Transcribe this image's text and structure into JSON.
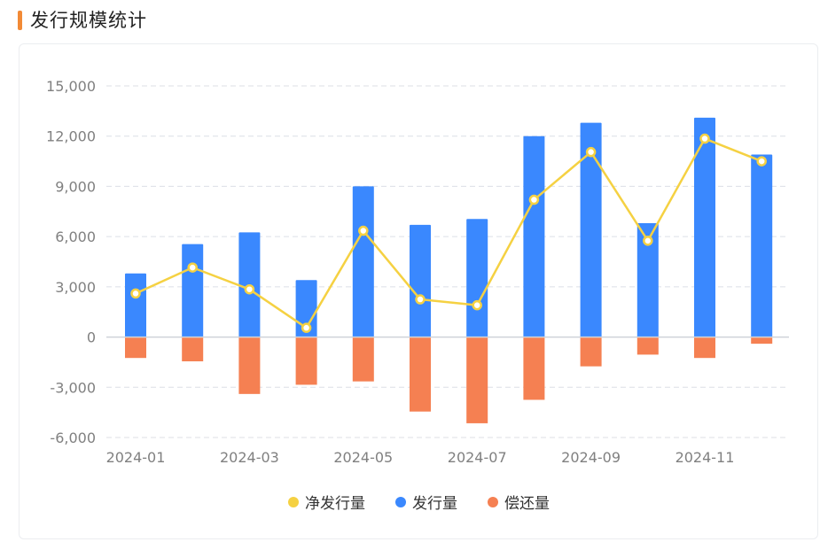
{
  "header": {
    "title": "发行规模统计"
  },
  "colors": {
    "accent": "#f28a36",
    "issuance": "#3a88fe",
    "repayment": "#f58052",
    "net": "#f5d142"
  },
  "chart_data": {
    "type": "bar",
    "categories": [
      "2024-01",
      "2024-02",
      "2024-03",
      "2024-04",
      "2024-05",
      "2024-06",
      "2024-07",
      "2024-08",
      "2024-09",
      "2024-10",
      "2024-11",
      "2024-12"
    ],
    "x_tick_labels": [
      "2024-01",
      "2024-03",
      "2024-05",
      "2024-07",
      "2024-09",
      "2024-11"
    ],
    "y_ticks": [
      "-6,000",
      "-3,000",
      "0",
      "3,000",
      "6,000",
      "9,000",
      "12,000",
      "15,000"
    ],
    "ylim": [
      -6000,
      15000
    ],
    "grid": true,
    "legend_position": "bottom",
    "series": [
      {
        "name": "净发行量",
        "type": "line",
        "color": "#f5d142",
        "values": [
          2600,
          4150,
          2850,
          550,
          6350,
          2250,
          1900,
          8200,
          11050,
          5750,
          11850,
          10500
        ]
      },
      {
        "name": "发行量",
        "type": "bar",
        "color": "#3a88fe",
        "values": [
          3800,
          5550,
          6250,
          3400,
          9000,
          6700,
          7050,
          12000,
          12800,
          6800,
          13100,
          10900
        ]
      },
      {
        "name": "偿还量",
        "type": "bar",
        "color": "#f58052",
        "values": [
          -1250,
          -1450,
          -3400,
          -2850,
          -2650,
          -4450,
          -5150,
          -3750,
          -1750,
          -1050,
          -1250,
          -400
        ]
      }
    ]
  }
}
